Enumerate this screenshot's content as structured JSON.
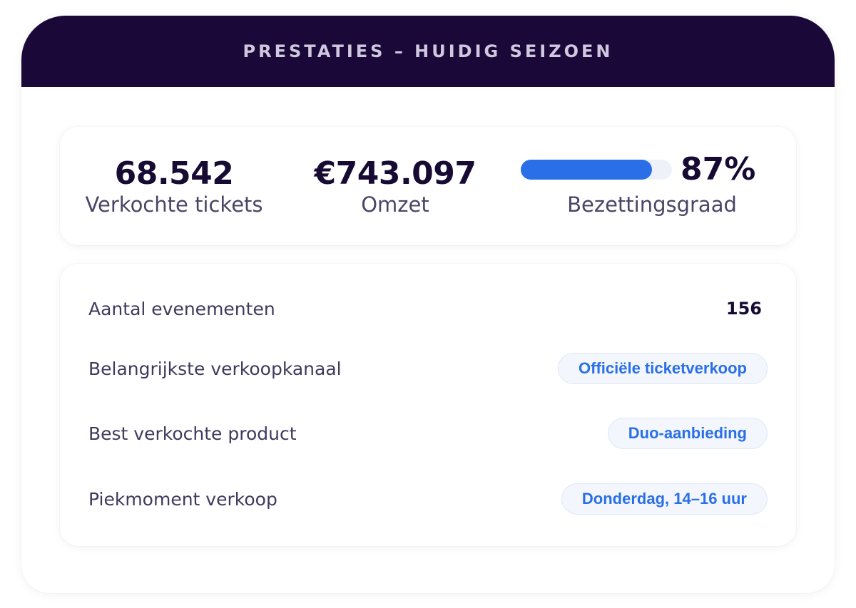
{
  "header": {
    "title": "PRESTATIES – HUIDIG SEIZOEN"
  },
  "stats": {
    "tickets": {
      "value": "68.542",
      "label": "Verkochte tickets"
    },
    "revenue": {
      "value": "€743.097",
      "label": "Omzet"
    },
    "occupancy": {
      "value": "87%",
      "label": "Bezettingsgraad",
      "fill_fraction": 0.87
    }
  },
  "details": {
    "events": {
      "label": "Aantal evenementen",
      "value": "156"
    },
    "channel": {
      "label": "Belangrijkste verkoopkanaal",
      "value": "Officiële ticketverkoop"
    },
    "product": {
      "label": "Best verkochte product",
      "value": "Duo-aanbieding"
    },
    "peak": {
      "label": "Piekmoment verkoop",
      "value": "Donderdag, 14–16 uur"
    }
  },
  "colors": {
    "header_bg": "#1a0838",
    "accent": "#2a6fe8",
    "text_dark": "#170b33"
  }
}
